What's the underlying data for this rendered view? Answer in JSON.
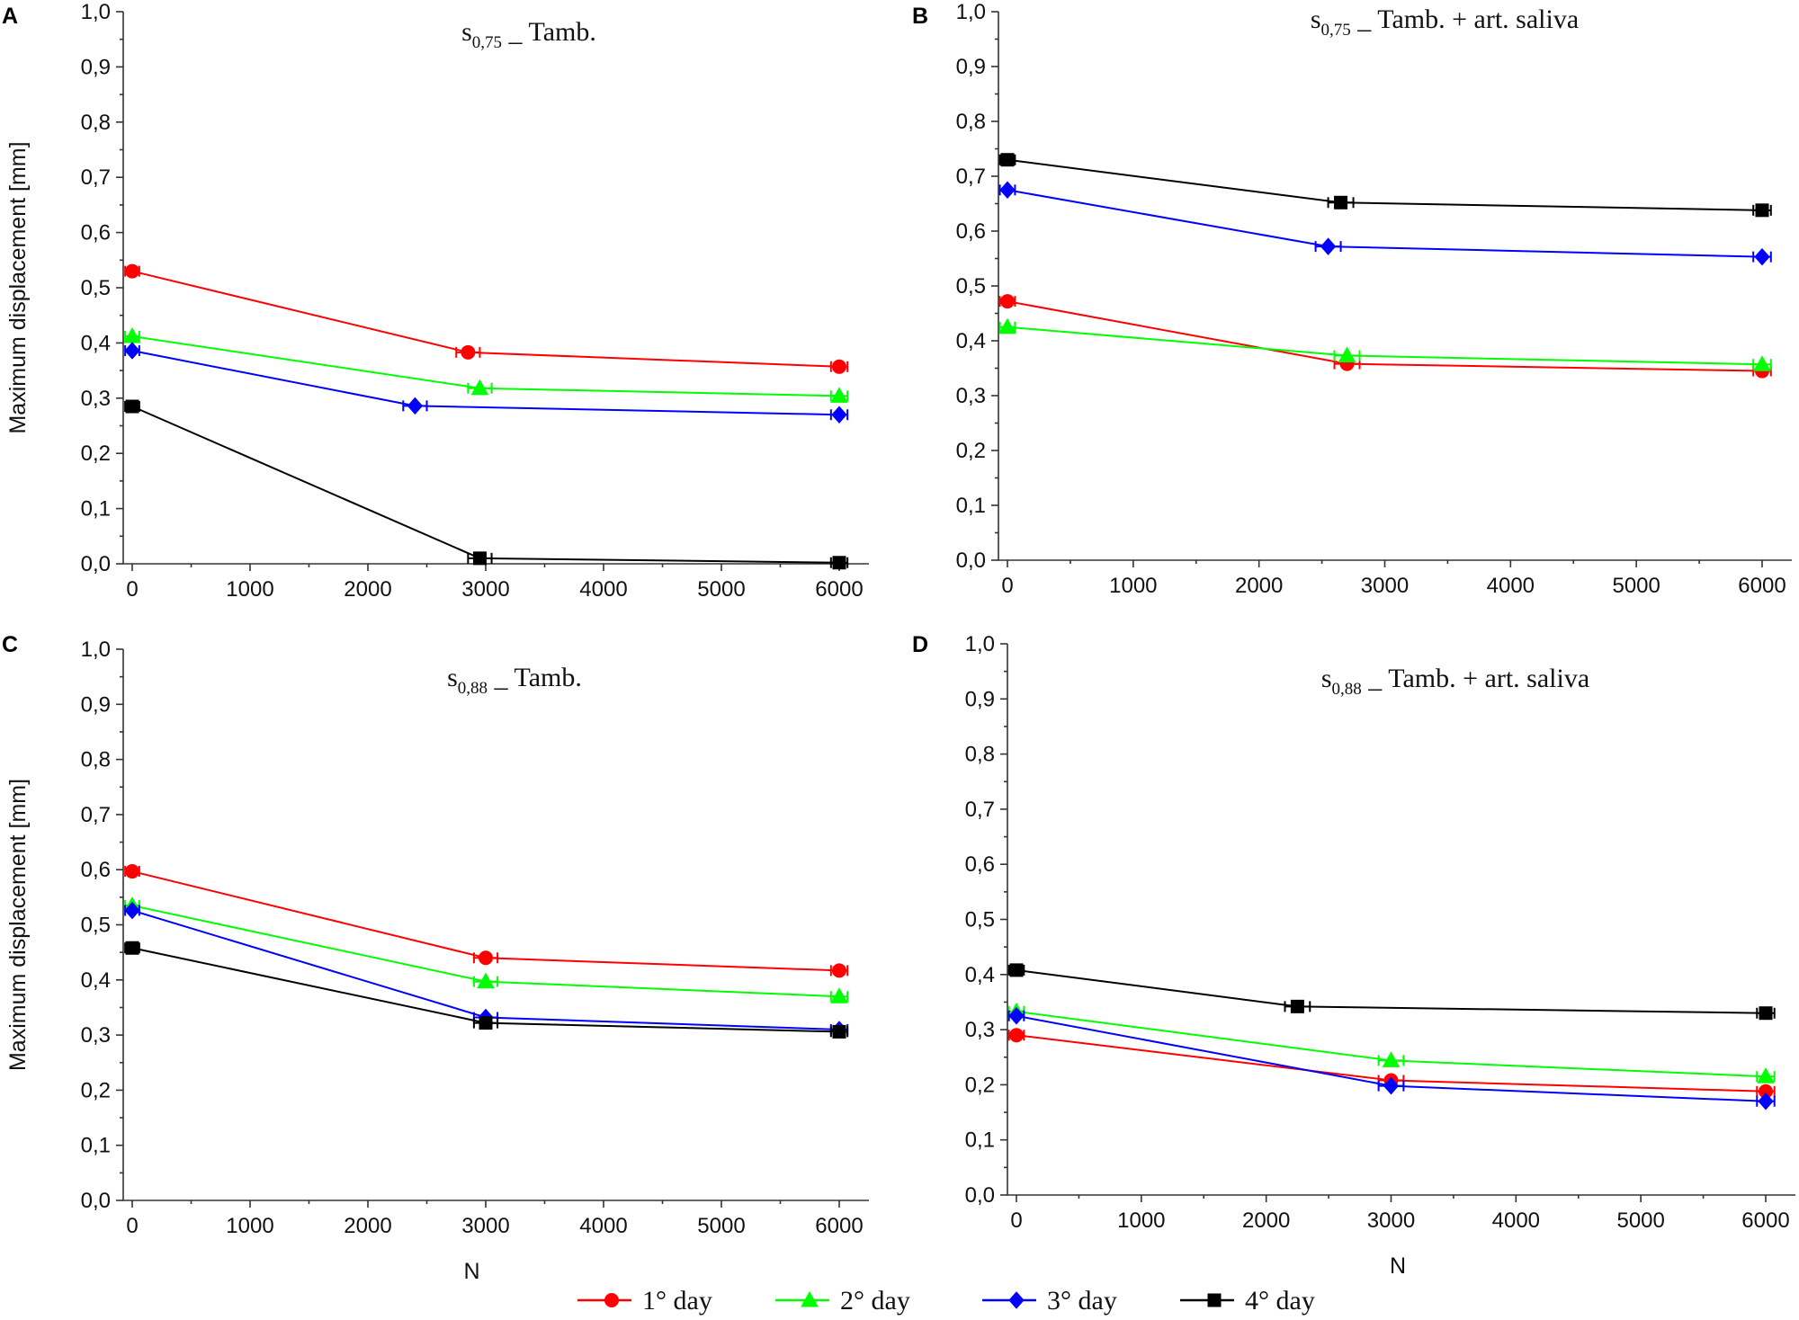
{
  "figure": {
    "legend": [
      {
        "name": "1° day",
        "color": "#ff0000",
        "marker": "circle"
      },
      {
        "name": "2° day",
        "color": "#00ff00",
        "marker": "triangle"
      },
      {
        "name": "3° day",
        "color": "#0000ff",
        "marker": "diamond"
      },
      {
        "name": "4° day",
        "color": "#000000",
        "marker": "square"
      }
    ]
  },
  "chart_data": [
    {
      "panel": "A",
      "type": "line",
      "title_main": "s",
      "title_sub": "0,75",
      "title_rest": " _ Tamb.",
      "xlabel": "",
      "ylabel": "Maximum displacement  [mm]",
      "xlim": [
        -100,
        6250
      ],
      "ylim": [
        0,
        1
      ],
      "x_ticks": [
        "0",
        "1000",
        "2000",
        "3000",
        "4000",
        "5000",
        "6000"
      ],
      "x_tick_values": [
        0,
        1000,
        2000,
        3000,
        4000,
        5000,
        6000
      ],
      "y_ticks": [
        "0,0",
        "0,1",
        "0,2",
        "0,3",
        "0,4",
        "0,5",
        "0,6",
        "0,7",
        "0,8",
        "0,9",
        "1,0"
      ],
      "y_tick_values": [
        0,
        0.1,
        0.2,
        0.3,
        0.4,
        0.5,
        0.6,
        0.7,
        0.8,
        0.9,
        1.0
      ],
      "series": [
        {
          "name": "1° day",
          "x": [
            0,
            2850,
            6000
          ],
          "y": [
            0.53,
            0.383,
            0.357
          ],
          "err": [
            60,
            100,
            70
          ]
        },
        {
          "name": "2° day",
          "x": [
            0,
            2950,
            6000
          ],
          "y": [
            0.412,
            0.318,
            0.304
          ],
          "err": [
            60,
            100,
            70
          ]
        },
        {
          "name": "3° day",
          "x": [
            0,
            2400,
            6000
          ],
          "y": [
            0.386,
            0.286,
            0.27
          ],
          "err": [
            60,
            100,
            70
          ]
        },
        {
          "name": "4° day",
          "x": [
            0,
            2950,
            6000
          ],
          "y": [
            0.285,
            0.01,
            0.002
          ],
          "err": [
            60,
            100,
            70
          ]
        }
      ]
    },
    {
      "panel": "B",
      "type": "line",
      "title_main": "s",
      "title_sub": "0,75",
      "title_rest": " _ Tamb. + art. saliva",
      "xlabel": "",
      "ylabel": "",
      "xlim": [
        -100,
        6250
      ],
      "ylim": [
        0,
        1
      ],
      "x_ticks": [
        "0",
        "1000",
        "2000",
        "3000",
        "4000",
        "5000",
        "6000"
      ],
      "x_tick_values": [
        0,
        1000,
        2000,
        3000,
        4000,
        5000,
        6000
      ],
      "y_ticks": [
        "0,0",
        "0,1",
        "0,2",
        "0,3",
        "0,4",
        "0,5",
        "0,6",
        "0,7",
        "0,8",
        "0,9",
        "1,0"
      ],
      "y_tick_values": [
        0,
        0.1,
        0.2,
        0.3,
        0.4,
        0.5,
        0.6,
        0.7,
        0.8,
        0.9,
        1.0
      ],
      "series": [
        {
          "name": "1° day",
          "x": [
            0,
            2700,
            6000
          ],
          "y": [
            0.472,
            0.358,
            0.345
          ],
          "err": [
            60,
            100,
            70
          ]
        },
        {
          "name": "2° day",
          "x": [
            0,
            2700,
            6000
          ],
          "y": [
            0.425,
            0.373,
            0.357
          ],
          "err": [
            60,
            100,
            70
          ]
        },
        {
          "name": "3° day",
          "x": [
            0,
            2550,
            6000
          ],
          "y": [
            0.675,
            0.572,
            0.553
          ],
          "err": [
            60,
            100,
            70
          ]
        },
        {
          "name": "4° day",
          "x": [
            0,
            2650,
            6000
          ],
          "y": [
            0.73,
            0.652,
            0.638
          ],
          "err": [
            60,
            100,
            70
          ]
        }
      ]
    },
    {
      "panel": "C",
      "type": "line",
      "title_main": "s",
      "title_sub": "0,88",
      "title_rest": " _ Tamb.",
      "xlabel": "N",
      "ylabel": "Maximum displacement  [mm]",
      "xlim": [
        -100,
        6250
      ],
      "ylim": [
        0,
        1
      ],
      "x_ticks": [
        "0",
        "1000",
        "2000",
        "3000",
        "4000",
        "5000",
        "6000"
      ],
      "x_tick_values": [
        0,
        1000,
        2000,
        3000,
        4000,
        5000,
        6000
      ],
      "y_ticks": [
        "0,0",
        "0,1",
        "0,2",
        "0,3",
        "0,4",
        "0,5",
        "0,6",
        "0,7",
        "0,8",
        "0,9",
        "1,0"
      ],
      "y_tick_values": [
        0,
        0.1,
        0.2,
        0.3,
        0.4,
        0.5,
        0.6,
        0.7,
        0.8,
        0.9,
        1.0
      ],
      "series": [
        {
          "name": "1° day",
          "x": [
            0,
            3000,
            6000
          ],
          "y": [
            0.597,
            0.44,
            0.417
          ],
          "err": [
            60,
            100,
            70
          ]
        },
        {
          "name": "2° day",
          "x": [
            0,
            3000,
            6000
          ],
          "y": [
            0.535,
            0.397,
            0.37
          ],
          "err": [
            60,
            100,
            70
          ]
        },
        {
          "name": "3° day",
          "x": [
            0,
            3000,
            6000
          ],
          "y": [
            0.526,
            0.332,
            0.31
          ],
          "err": [
            60,
            100,
            70
          ]
        },
        {
          "name": "4° day",
          "x": [
            0,
            3000,
            6000
          ],
          "y": [
            0.458,
            0.322,
            0.306
          ],
          "err": [
            60,
            100,
            70
          ]
        }
      ]
    },
    {
      "panel": "D",
      "type": "line",
      "title_main": "s",
      "title_sub": "0,88",
      "title_rest": " _ Tamb. +  art. saliva",
      "xlabel": "N",
      "ylabel": "",
      "xlim": [
        -100,
        6250
      ],
      "ylim": [
        0,
        1
      ],
      "x_ticks": [
        "0",
        "1000",
        "2000",
        "3000",
        "4000",
        "5000",
        "6000"
      ],
      "x_tick_values": [
        0,
        1000,
        2000,
        3000,
        4000,
        5000,
        6000
      ],
      "y_ticks": [
        "0,0",
        "0,1",
        "0,2",
        "0,3",
        "0,4",
        "0,5",
        "0,6",
        "0,7",
        "0,8",
        "0,9",
        "1,0"
      ],
      "y_tick_values": [
        0,
        0.1,
        0.2,
        0.3,
        0.4,
        0.5,
        0.6,
        0.7,
        0.8,
        0.9,
        1.0
      ],
      "series": [
        {
          "name": "1° day",
          "x": [
            0,
            3000,
            6000
          ],
          "y": [
            0.29,
            0.208,
            0.188
          ],
          "err": [
            60,
            100,
            70
          ]
        },
        {
          "name": "2° day",
          "x": [
            0,
            3000,
            6000
          ],
          "y": [
            0.333,
            0.244,
            0.215
          ],
          "err": [
            60,
            100,
            70
          ]
        },
        {
          "name": "3° day",
          "x": [
            0,
            3000,
            6000
          ],
          "y": [
            0.325,
            0.198,
            0.17
          ],
          "err": [
            60,
            100,
            70
          ]
        },
        {
          "name": "4° day",
          "x": [
            0,
            2250,
            6000
          ],
          "y": [
            0.408,
            0.342,
            0.33
          ],
          "err": [
            60,
            100,
            70
          ]
        }
      ]
    }
  ]
}
